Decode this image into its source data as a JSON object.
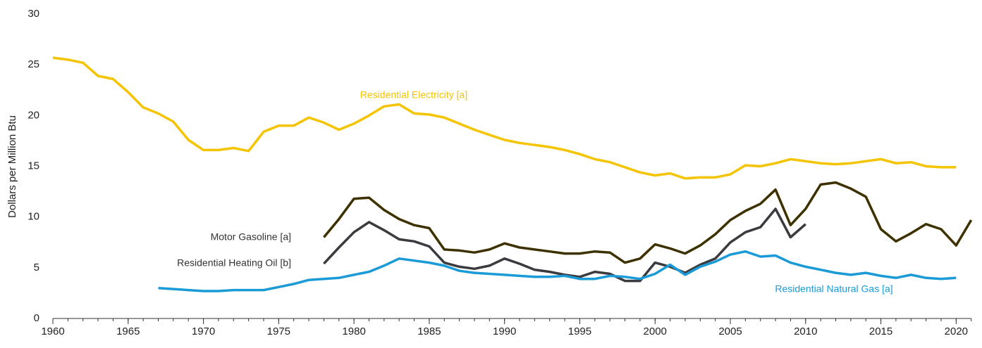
{
  "chart_data": {
    "type": "line",
    "y_label": "Dollars per Million Btu",
    "x": [
      1960,
      1961,
      1962,
      1963,
      1964,
      1965,
      1966,
      1967,
      1968,
      1969,
      1970,
      1971,
      1972,
      1973,
      1974,
      1975,
      1976,
      1977,
      1978,
      1979,
      1980,
      1981,
      1982,
      1983,
      1984,
      1985,
      1986,
      1987,
      1988,
      1989,
      1990,
      1991,
      1992,
      1993,
      1994,
      1995,
      1996,
      1997,
      1998,
      1999,
      2000,
      2001,
      2002,
      2003,
      2004,
      2005,
      2006,
      2007,
      2008,
      2009,
      2010,
      2011,
      2012,
      2013,
      2014,
      2015,
      2016,
      2017,
      2018,
      2019,
      2020,
      2021
    ],
    "xlim": [
      1960,
      2021
    ],
    "xticks": [
      1960,
      1965,
      1970,
      1975,
      1980,
      1985,
      1990,
      1995,
      2000,
      2005,
      2010,
      2015,
      2020
    ],
    "ylim": [
      0,
      30
    ],
    "yticks": [
      0,
      5,
      10,
      15,
      20,
      25,
      30
    ],
    "grid": false,
    "series": [
      {
        "name": "Residential Electricity [a]",
        "color": "#f5c400",
        "values": [
          25.7,
          25.5,
          25.2,
          23.9,
          23.6,
          22.3,
          20.8,
          20.2,
          19.4,
          17.6,
          16.6,
          16.6,
          16.8,
          16.5,
          18.4,
          19.0,
          19.0,
          19.8,
          19.3,
          18.6,
          19.2,
          20.0,
          20.9,
          21.1,
          20.2,
          20.1,
          19.8,
          19.2,
          18.6,
          18.1,
          17.6,
          17.3,
          17.1,
          16.9,
          16.6,
          16.2,
          15.7,
          15.4,
          14.9,
          14.4,
          14.1,
          14.3,
          13.8,
          13.9,
          13.9,
          14.2,
          15.1,
          15.0,
          15.3,
          15.7,
          15.5,
          15.3,
          15.2,
          15.3,
          15.5,
          15.7,
          15.3,
          15.4,
          15.0,
          14.9,
          14.9,
          null
        ]
      },
      {
        "name": "Motor Gasoline [a]",
        "color": "#3d3100",
        "values": [
          null,
          null,
          null,
          null,
          null,
          null,
          null,
          null,
          null,
          null,
          null,
          null,
          null,
          null,
          null,
          null,
          null,
          null,
          8.0,
          9.8,
          11.8,
          11.9,
          10.7,
          9.8,
          9.2,
          8.9,
          6.8,
          6.7,
          6.5,
          6.8,
          7.4,
          7.0,
          6.8,
          6.6,
          6.4,
          6.4,
          6.6,
          6.5,
          5.5,
          5.9,
          7.3,
          6.9,
          6.4,
          7.2,
          8.3,
          9.7,
          10.6,
          11.3,
          12.7,
          9.2,
          10.8,
          13.2,
          13.4,
          12.8,
          12.0,
          8.8,
          7.6,
          8.4,
          9.3,
          8.8,
          7.2,
          9.7
        ]
      },
      {
        "name": "Residential Heating Oil [b]",
        "color": "#3a3a3f",
        "values": [
          null,
          null,
          null,
          null,
          null,
          null,
          null,
          null,
          null,
          null,
          null,
          null,
          null,
          null,
          null,
          null,
          null,
          null,
          5.4,
          7.0,
          8.5,
          9.5,
          8.7,
          7.8,
          7.6,
          7.1,
          5.5,
          5.1,
          4.9,
          5.2,
          5.9,
          5.4,
          4.8,
          4.6,
          4.3,
          4.1,
          4.6,
          4.4,
          3.7,
          3.7,
          5.5,
          5.1,
          4.5,
          5.3,
          5.9,
          7.5,
          8.5,
          9.0,
          10.8,
          8.0,
          9.3,
          null,
          null,
          null,
          null,
          null,
          null,
          null,
          null,
          null,
          null,
          null
        ]
      },
      {
        "name": "Residential Natural Gas [a]",
        "color": "#1a9bd7",
        "values": [
          null,
          null,
          null,
          null,
          null,
          null,
          null,
          3.0,
          2.9,
          2.8,
          2.7,
          2.7,
          2.8,
          2.8,
          2.8,
          3.1,
          3.4,
          3.8,
          3.9,
          4.0,
          4.3,
          4.6,
          5.2,
          5.9,
          5.7,
          5.5,
          5.2,
          4.7,
          4.5,
          4.4,
          4.3,
          4.2,
          4.1,
          4.1,
          4.2,
          3.9,
          3.9,
          4.2,
          4.1,
          3.9,
          4.4,
          5.3,
          4.3,
          5.1,
          5.6,
          6.3,
          6.6,
          6.1,
          6.2,
          5.5,
          5.1,
          4.8,
          4.5,
          4.3,
          4.5,
          4.2,
          4.0,
          4.3,
          4.0,
          3.9,
          4.0,
          null
        ]
      }
    ]
  }
}
